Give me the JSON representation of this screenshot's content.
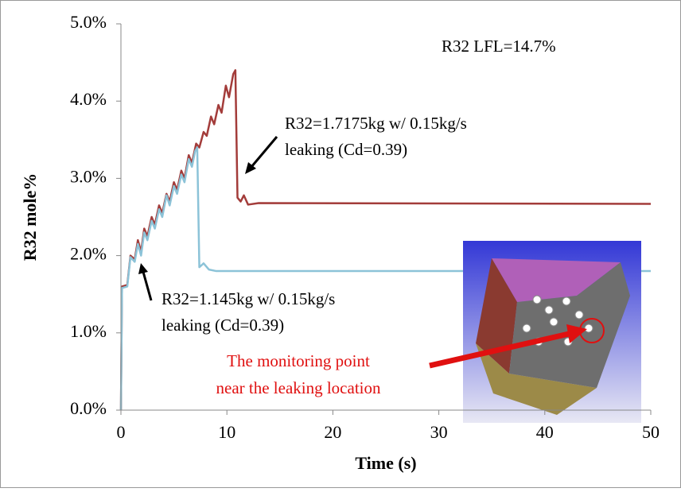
{
  "chart_data": {
    "type": "line",
    "xlabel": "Time (s)",
    "ylabel": "R32 mole%",
    "xlim": [
      0,
      50
    ],
    "xticks": [
      0,
      10,
      20,
      30,
      40,
      50
    ],
    "ylim": [
      0,
      5
    ],
    "yticks": [
      {
        "value": 0,
        "label": "0.0%"
      },
      {
        "value": 1,
        "label": "1.0%"
      },
      {
        "value": 2,
        "label": "2.0%"
      },
      {
        "value": 3,
        "label": "3.0%"
      },
      {
        "value": 4,
        "label": "4.0%"
      },
      {
        "value": 5,
        "label": "5.0%"
      }
    ],
    "grid": false,
    "annotations": [
      "R32 LFL=14.7%",
      "R32=1.7175kg w/ 0.15kg/s",
      "leaking (Cd=0.39)",
      "R32=1.145kg w/ 0.15kg/s",
      "leaking (Cd=0.39)",
      "The  monitoring point",
      "near the leaking location"
    ],
    "series": [
      {
        "color": "#a33c3a",
        "x": [
          0,
          0.1,
          0.6,
          0.9,
          1.3,
          1.6,
          1.9,
          2.2,
          2.5,
          2.9,
          3.2,
          3.6,
          3.9,
          4.3,
          4.6,
          5.0,
          5.3,
          5.7,
          6.0,
          6.4,
          6.7,
          7.1,
          7.4,
          7.8,
          8.1,
          8.5,
          8.8,
          9.2,
          9.5,
          9.9,
          10.2,
          10.6,
          10.8,
          11.0,
          11.3,
          11.6,
          12.0,
          13,
          50
        ],
        "values": [
          0,
          1.6,
          1.62,
          2.0,
          1.95,
          2.2,
          2.05,
          2.35,
          2.25,
          2.5,
          2.4,
          2.65,
          2.55,
          2.8,
          2.7,
          2.95,
          2.85,
          3.1,
          3.0,
          3.3,
          3.2,
          3.45,
          3.4,
          3.6,
          3.55,
          3.8,
          3.7,
          3.95,
          3.85,
          4.2,
          4.05,
          4.35,
          4.4,
          2.75,
          2.7,
          2.78,
          2.66,
          2.68,
          2.67
        ]
      },
      {
        "color": "#8cc3d8",
        "x": [
          0,
          0.1,
          0.6,
          0.9,
          1.3,
          1.6,
          1.9,
          2.2,
          2.5,
          2.9,
          3.2,
          3.6,
          3.9,
          4.3,
          4.6,
          5.0,
          5.3,
          5.7,
          6.0,
          6.4,
          6.7,
          7.0,
          7.2,
          7.4,
          7.8,
          8.3,
          9,
          50
        ],
        "values": [
          0,
          1.58,
          1.6,
          1.98,
          1.92,
          2.15,
          2.0,
          2.3,
          2.2,
          2.45,
          2.35,
          2.6,
          2.5,
          2.78,
          2.65,
          2.9,
          2.8,
          3.05,
          2.95,
          3.25,
          3.15,
          3.35,
          3.4,
          1.85,
          1.9,
          1.82,
          1.8,
          1.8
        ]
      }
    ]
  }
}
